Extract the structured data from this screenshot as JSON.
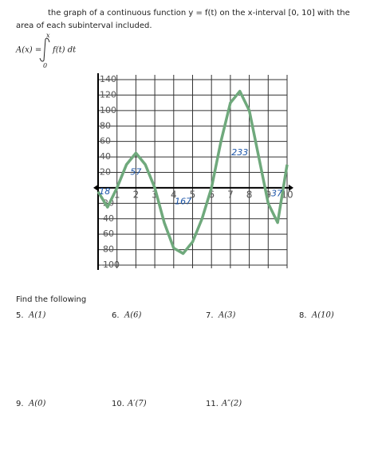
{
  "header": {
    "line1": "the graph of a continuous function y = f(t) on the x-interval [0, 10] with the",
    "line2": "area of each subinterval included.",
    "formula_lhs": "A(x) =",
    "formula_upper": "x",
    "formula_lower": "0",
    "formula_integrand": "f(t) dt"
  },
  "chart_data": {
    "type": "line",
    "x": [
      0,
      0.5,
      1,
      1.5,
      2,
      2.5,
      3,
      3.5,
      4,
      4.5,
      5,
      5.5,
      6,
      6.5,
      7,
      7.5,
      8,
      8.5,
      9,
      9.5,
      10
    ],
    "series": [
      {
        "color": "#6fa97c",
        "values": [
          -5,
          -25,
          0,
          30,
          45,
          30,
          0,
          -45,
          -78,
          -85,
          -70,
          -40,
          0,
          60,
          110,
          125,
          100,
          40,
          -20,
          -45,
          30
        ]
      }
    ],
    "xlim": [
      0,
      10
    ],
    "ylim": [
      -100,
      140
    ],
    "xticks": [
      1,
      2,
      3,
      4,
      5,
      6,
      7,
      8,
      9,
      10
    ],
    "yticks": [
      -100,
      -80,
      -60,
      -40,
      -20,
      20,
      40,
      60,
      80,
      100,
      120,
      140
    ],
    "grid": true,
    "annotations": [
      "18",
      "57",
      "167",
      "233",
      "37"
    ]
  },
  "questions": {
    "heading": "Find the following",
    "items": [
      [
        "5.",
        "A(1)"
      ],
      [
        "6.",
        "A(6)"
      ],
      [
        "7.",
        "A(3)"
      ],
      [
        "8.",
        "A(10)"
      ],
      [
        "9.",
        "A(0)"
      ],
      [
        "10.",
        "A′(7)"
      ],
      [
        "11.",
        "A″(2)"
      ]
    ]
  }
}
